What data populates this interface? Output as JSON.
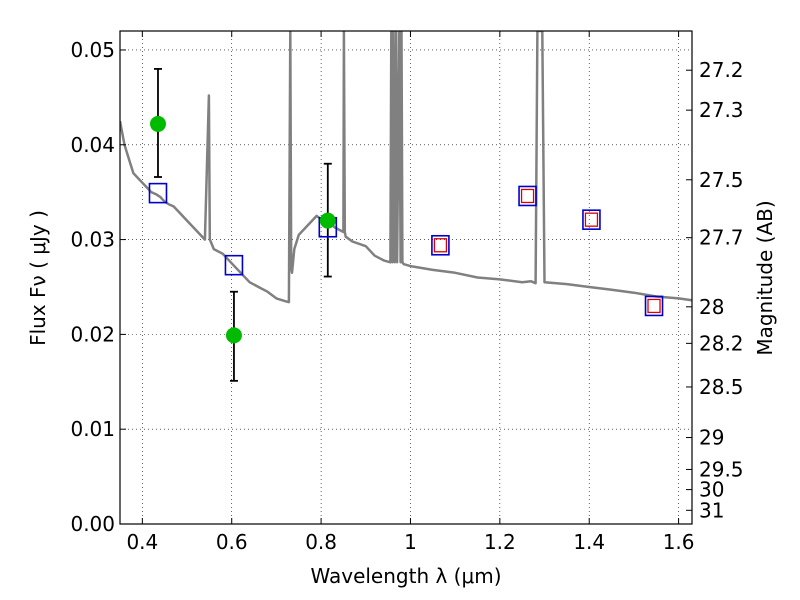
{
  "chart_data": {
    "type": "scatter",
    "title": "",
    "xlabel": "Wavelength  λ (μm)",
    "ylabel": "Flux  Fν  ( μJy )",
    "y2label": "Magnitude (AB)",
    "xlim": [
      0.35,
      1.63
    ],
    "ylim": [
      0.0,
      0.052
    ],
    "grid": true,
    "legend": "none",
    "xticks": [
      0.4,
      0.6,
      0.8,
      1.0,
      1.2,
      1.4,
      1.6
    ],
    "xtick_labels": [
      "0.4",
      "0.6",
      "0.8",
      "1",
      "1.2",
      "1.4",
      "1.6"
    ],
    "yticks": [
      0.0,
      0.01,
      0.02,
      0.03,
      0.04,
      0.05
    ],
    "ytick_labels": [
      "0.00",
      "0.01",
      "0.02",
      "0.03",
      "0.04",
      "0.05"
    ],
    "mag_ticks": [
      27.2,
      27.3,
      27.5,
      27.7,
      28,
      28.2,
      28.5,
      29,
      29.5,
      30,
      31
    ],
    "mag_tick_labels": [
      "27.2",
      "27.3",
      "27.5",
      "27.7",
      "28",
      "28.2",
      "28.5",
      "29",
      "29.5",
      "30",
      "31"
    ],
    "colors": {
      "template": "#808080",
      "observed": "#00bb00",
      "model_box": "#0000cc",
      "model_inner": "#dd0000",
      "errorbar": "#000000",
      "grid": "#000000"
    },
    "series": [
      {
        "kind": "template_spectrum",
        "x": [
          0.35,
          0.36,
          0.37,
          0.38,
          0.39,
          0.4,
          0.41,
          0.42,
          0.43,
          0.44,
          0.45,
          0.46,
          0.47,
          0.48,
          0.5,
          0.52,
          0.54,
          0.549,
          0.551,
          0.553,
          0.56,
          0.58,
          0.6,
          0.62,
          0.64,
          0.66,
          0.68,
          0.7,
          0.72,
          0.728,
          0.731,
          0.733,
          0.735,
          0.74,
          0.75,
          0.77,
          0.79,
          0.81,
          0.82,
          0.83,
          0.85,
          0.851,
          0.853,
          0.855,
          0.87,
          0.9,
          0.92,
          0.94,
          0.955,
          0.957,
          0.96,
          0.962,
          0.965,
          0.968,
          0.97,
          0.975,
          0.978,
          0.98,
          0.982,
          0.985,
          1.0,
          1.05,
          1.1,
          1.15,
          1.2,
          1.25,
          1.27,
          1.28,
          1.284,
          1.29,
          1.295,
          1.3,
          1.35,
          1.4,
          1.45,
          1.5,
          1.55,
          1.6,
          1.63
        ],
        "y": [
          0.0425,
          0.04,
          0.0385,
          0.037,
          0.0365,
          0.036,
          0.0355,
          0.035,
          0.0348,
          0.0345,
          0.034,
          0.0337,
          0.0335,
          0.033,
          0.032,
          0.031,
          0.03,
          0.0452,
          0.03,
          0.0298,
          0.029,
          0.0285,
          0.0275,
          0.0265,
          0.0255,
          0.025,
          0.0245,
          0.0238,
          0.0235,
          0.0234,
          0.052,
          0.027,
          0.0265,
          0.029,
          0.0305,
          0.0315,
          0.0325,
          0.0318,
          0.0318,
          0.0313,
          0.0308,
          0.052,
          0.0308,
          0.0303,
          0.0298,
          0.0293,
          0.0283,
          0.0278,
          0.0276,
          0.052,
          0.0276,
          0.052,
          0.0276,
          0.052,
          0.0276,
          0.052,
          0.0276,
          0.052,
          0.0276,
          0.0274,
          0.0272,
          0.0268,
          0.0265,
          0.026,
          0.0258,
          0.0255,
          0.0256,
          0.0254,
          0.052,
          0.052,
          0.052,
          0.0255,
          0.0253,
          0.025,
          0.0247,
          0.0244,
          0.024,
          0.0238,
          0.0236
        ]
      },
      {
        "kind": "observed",
        "x": [
          0.435,
          0.605,
          0.815
        ],
        "y": [
          0.0422,
          0.0199,
          0.032
        ],
        "yerr_low": [
          0.0366,
          0.0151,
          0.0261
        ],
        "yerr_high": [
          0.048,
          0.0245,
          0.038
        ]
      },
      {
        "kind": "model_box",
        "x": [
          0.435,
          0.605,
          0.815,
          1.067,
          1.262,
          1.405,
          1.545
        ],
        "y": [
          0.0349,
          0.0273,
          0.0313,
          0.0294,
          0.0346,
          0.0321,
          0.023
        ]
      },
      {
        "kind": "model_inner",
        "x": [
          1.067,
          1.262,
          1.405,
          1.545
        ],
        "y": [
          0.0294,
          0.0346,
          0.0321,
          0.023
        ]
      }
    ]
  }
}
